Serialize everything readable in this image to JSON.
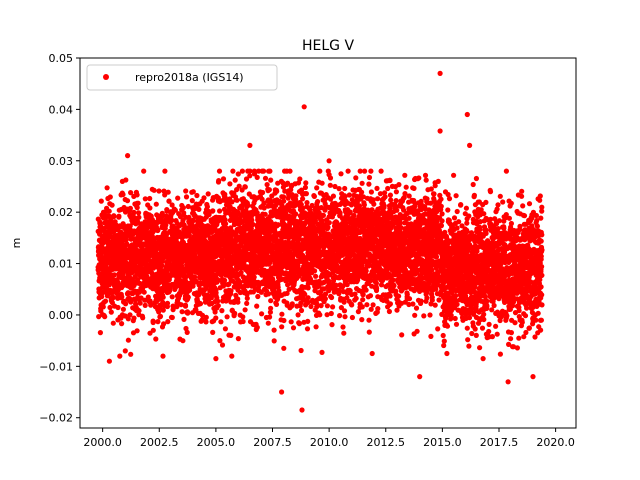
{
  "chart_data": {
    "type": "scatter",
    "title": "HELG V",
    "xlabel": "",
    "ylabel": "m",
    "xlim": [
      1999.0,
      2020.9
    ],
    "ylim": [
      -0.022,
      0.05
    ],
    "xticks": [
      2000.0,
      2002.5,
      2005.0,
      2007.5,
      2010.0,
      2012.5,
      2015.0,
      2017.5,
      2020.0
    ],
    "xtick_labels": [
      "2000.0",
      "2002.5",
      "2005.0",
      "2007.5",
      "2010.0",
      "2012.5",
      "2015.0",
      "2017.5",
      "2020.0"
    ],
    "yticks": [
      -0.02,
      -0.01,
      0.0,
      0.01,
      0.02,
      0.03,
      0.04,
      0.05
    ],
    "ytick_labels": [
      "−0.02",
      "−0.01",
      "0.00",
      "0.01",
      "0.02",
      "0.03",
      "0.04",
      "0.05"
    ],
    "legend": {
      "placement": "top-left",
      "entries": [
        "repro2018a (IGS14)"
      ]
    },
    "marker_color": "#ff0000",
    "series": [
      {
        "name": "repro2018a (IGS14)",
        "x_range": [
          1999.8,
          2019.4
        ],
        "segments": [
          {
            "from": 1999.8,
            "to": 2005.0,
            "mean": 0.011,
            "sd": 0.0055
          },
          {
            "from": 2005.0,
            "to": 2010.0,
            "mean": 0.013,
            "sd": 0.006
          },
          {
            "from": 2010.0,
            "to": 2015.0,
            "mean": 0.013,
            "sd": 0.0055
          },
          {
            "from": 2015.0,
            "to": 2019.4,
            "mean": 0.009,
            "sd": 0.0055
          }
        ],
        "outliers": [
          [
            2014.9,
            0.047
          ],
          [
            2008.9,
            0.0405
          ],
          [
            2016.1,
            0.039
          ],
          [
            2014.9,
            0.0358
          ],
          [
            2016.2,
            0.033
          ],
          [
            2006.5,
            0.033
          ],
          [
            2010.0,
            0.03
          ],
          [
            2001.1,
            0.031
          ],
          [
            2007.9,
            -0.015
          ],
          [
            2008.8,
            -0.0185
          ],
          [
            2017.9,
            -0.013
          ],
          [
            2014.0,
            -0.012
          ],
          [
            2019.0,
            -0.012
          ],
          [
            2005.0,
            -0.0085
          ],
          [
            2016.8,
            -0.0085
          ],
          [
            2000.3,
            -0.009
          ],
          [
            2011.9,
            -0.0075
          ],
          [
            2015.2,
            -0.0075
          ],
          [
            2001.0,
            -0.007
          ],
          [
            2008.0,
            -0.0065
          ]
        ]
      }
    ]
  }
}
